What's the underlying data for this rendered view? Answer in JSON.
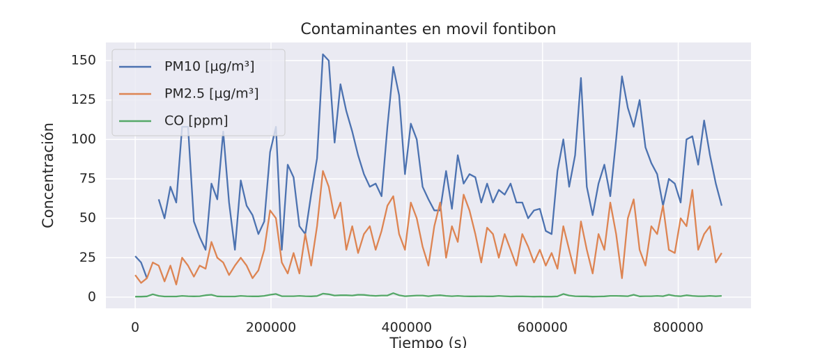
{
  "chart_data": {
    "type": "line",
    "title": "Contaminantes en movil fontibon",
    "xlabel": "Tiempo (s)",
    "ylabel": "Concentración",
    "x": [
      0,
      8640,
      17280,
      25920,
      34560,
      43200,
      51840,
      60480,
      69120,
      77760,
      86400,
      95040,
      103680,
      112320,
      120960,
      129600,
      138240,
      146880,
      155520,
      164160,
      172800,
      181440,
      190080,
      198720,
      207360,
      216000,
      224640,
      233280,
      241920,
      250560,
      259200,
      267840,
      276480,
      285120,
      293760,
      302400,
      311040,
      319680,
      328320,
      336960,
      345600,
      354240,
      362880,
      371520,
      380160,
      388800,
      397440,
      406080,
      414720,
      423360,
      432000,
      440640,
      449280,
      457920,
      466560,
      475200,
      483840,
      492480,
      501120,
      509760,
      518400,
      527040,
      535680,
      544320,
      552960,
      561600,
      570240,
      578880,
      587520,
      596160,
      604800,
      613440,
      622080,
      630720,
      639360,
      648000,
      656640,
      665280,
      673920,
      682560,
      691200,
      699840,
      708480,
      717120,
      725760,
      734400,
      743040,
      751680,
      760320,
      768960,
      777600,
      786240,
      794880,
      803520,
      812160,
      820800,
      829440,
      838080,
      846720,
      855360,
      864000
    ],
    "series": [
      {
        "name": "PM10 [μg/m³]",
        "color": "#4c72b0",
        "values": [
          26,
          22,
          12,
          null,
          62,
          50,
          70,
          60,
          108,
          108,
          48,
          38,
          30,
          72,
          62,
          105,
          60,
          30,
          74,
          58,
          52,
          40,
          48,
          92,
          108,
          30,
          84,
          76,
          45,
          40,
          65,
          88,
          154,
          150,
          98,
          135,
          118,
          105,
          90,
          78,
          70,
          72,
          64,
          108,
          146,
          128,
          78,
          110,
          100,
          70,
          62,
          55,
          55,
          80,
          56,
          90,
          72,
          78,
          76,
          60,
          72,
          60,
          68,
          65,
          72,
          60,
          60,
          50,
          55,
          56,
          42,
          40,
          80,
          100,
          70,
          90,
          139,
          70,
          52,
          72,
          84,
          64,
          100,
          140,
          120,
          108,
          125,
          95,
          85,
          78,
          58,
          75,
          72,
          60,
          100,
          102,
          84,
          112,
          90,
          72,
          58
        ]
      },
      {
        "name": "PM2.5 [μg/m³]",
        "color": "#dd8452",
        "values": [
          14,
          9,
          12,
          22,
          20,
          10,
          20,
          8,
          25,
          20,
          13,
          20,
          18,
          35,
          25,
          22,
          14,
          20,
          25,
          20,
          12,
          17,
          30,
          55,
          50,
          22,
          15,
          28,
          15,
          40,
          20,
          45,
          80,
          70,
          50,
          60,
          30,
          45,
          28,
          40,
          45,
          30,
          42,
          58,
          64,
          40,
          30,
          60,
          50,
          32,
          20,
          45,
          60,
          25,
          45,
          35,
          65,
          55,
          40,
          22,
          44,
          40,
          25,
          40,
          30,
          20,
          40,
          32,
          22,
          30,
          20,
          28,
          18,
          45,
          30,
          15,
          48,
          30,
          15,
          40,
          30,
          60,
          40,
          12,
          50,
          62,
          30,
          20,
          45,
          40,
          58,
          30,
          28,
          50,
          45,
          68,
          30,
          40,
          45,
          22,
          28
        ]
      },
      {
        "name": "CO [ppm]",
        "color": "#55a868",
        "values": [
          0.3,
          0.3,
          0.5,
          1.8,
          0.8,
          0.4,
          0.4,
          0.4,
          0.8,
          0.6,
          0.5,
          0.6,
          1.2,
          1.5,
          0.5,
          0.4,
          0.4,
          0.4,
          0.8,
          0.6,
          0.5,
          0.5,
          0.8,
          1.5,
          2.0,
          0.6,
          0.6,
          0.6,
          0.8,
          0.6,
          0.5,
          0.7,
          2.2,
          1.8,
          1.0,
          1.2,
          1.2,
          1.0,
          1.5,
          1.4,
          1.0,
          0.8,
          1.0,
          1.0,
          2.5,
          1.2,
          0.6,
          0.8,
          1.0,
          1.0,
          0.6,
          1.0,
          1.2,
          0.8,
          0.6,
          0.8,
          0.6,
          0.5,
          0.5,
          0.6,
          0.5,
          0.5,
          0.8,
          0.6,
          0.4,
          0.5,
          0.5,
          0.4,
          0.3,
          0.4,
          0.3,
          0.3,
          0.5,
          2.0,
          1.0,
          0.6,
          0.5,
          0.5,
          0.3,
          0.4,
          0.5,
          0.8,
          0.8,
          0.7,
          0.6,
          1.5,
          0.5,
          0.6,
          0.6,
          0.8,
          0.6,
          1.5,
          0.8,
          0.6,
          1.2,
          0.8,
          0.6,
          0.6,
          0.8,
          0.6,
          0.8
        ]
      }
    ],
    "xlim": [
      -43200,
      907200
    ],
    "xticks": [
      0,
      200000,
      400000,
      600000,
      800000
    ],
    "ylim": [
      -7.1,
      161.5
    ],
    "yticks": [
      0,
      25,
      50,
      75,
      100,
      125,
      150
    ],
    "grid": true,
    "legend": "upper left"
  }
}
